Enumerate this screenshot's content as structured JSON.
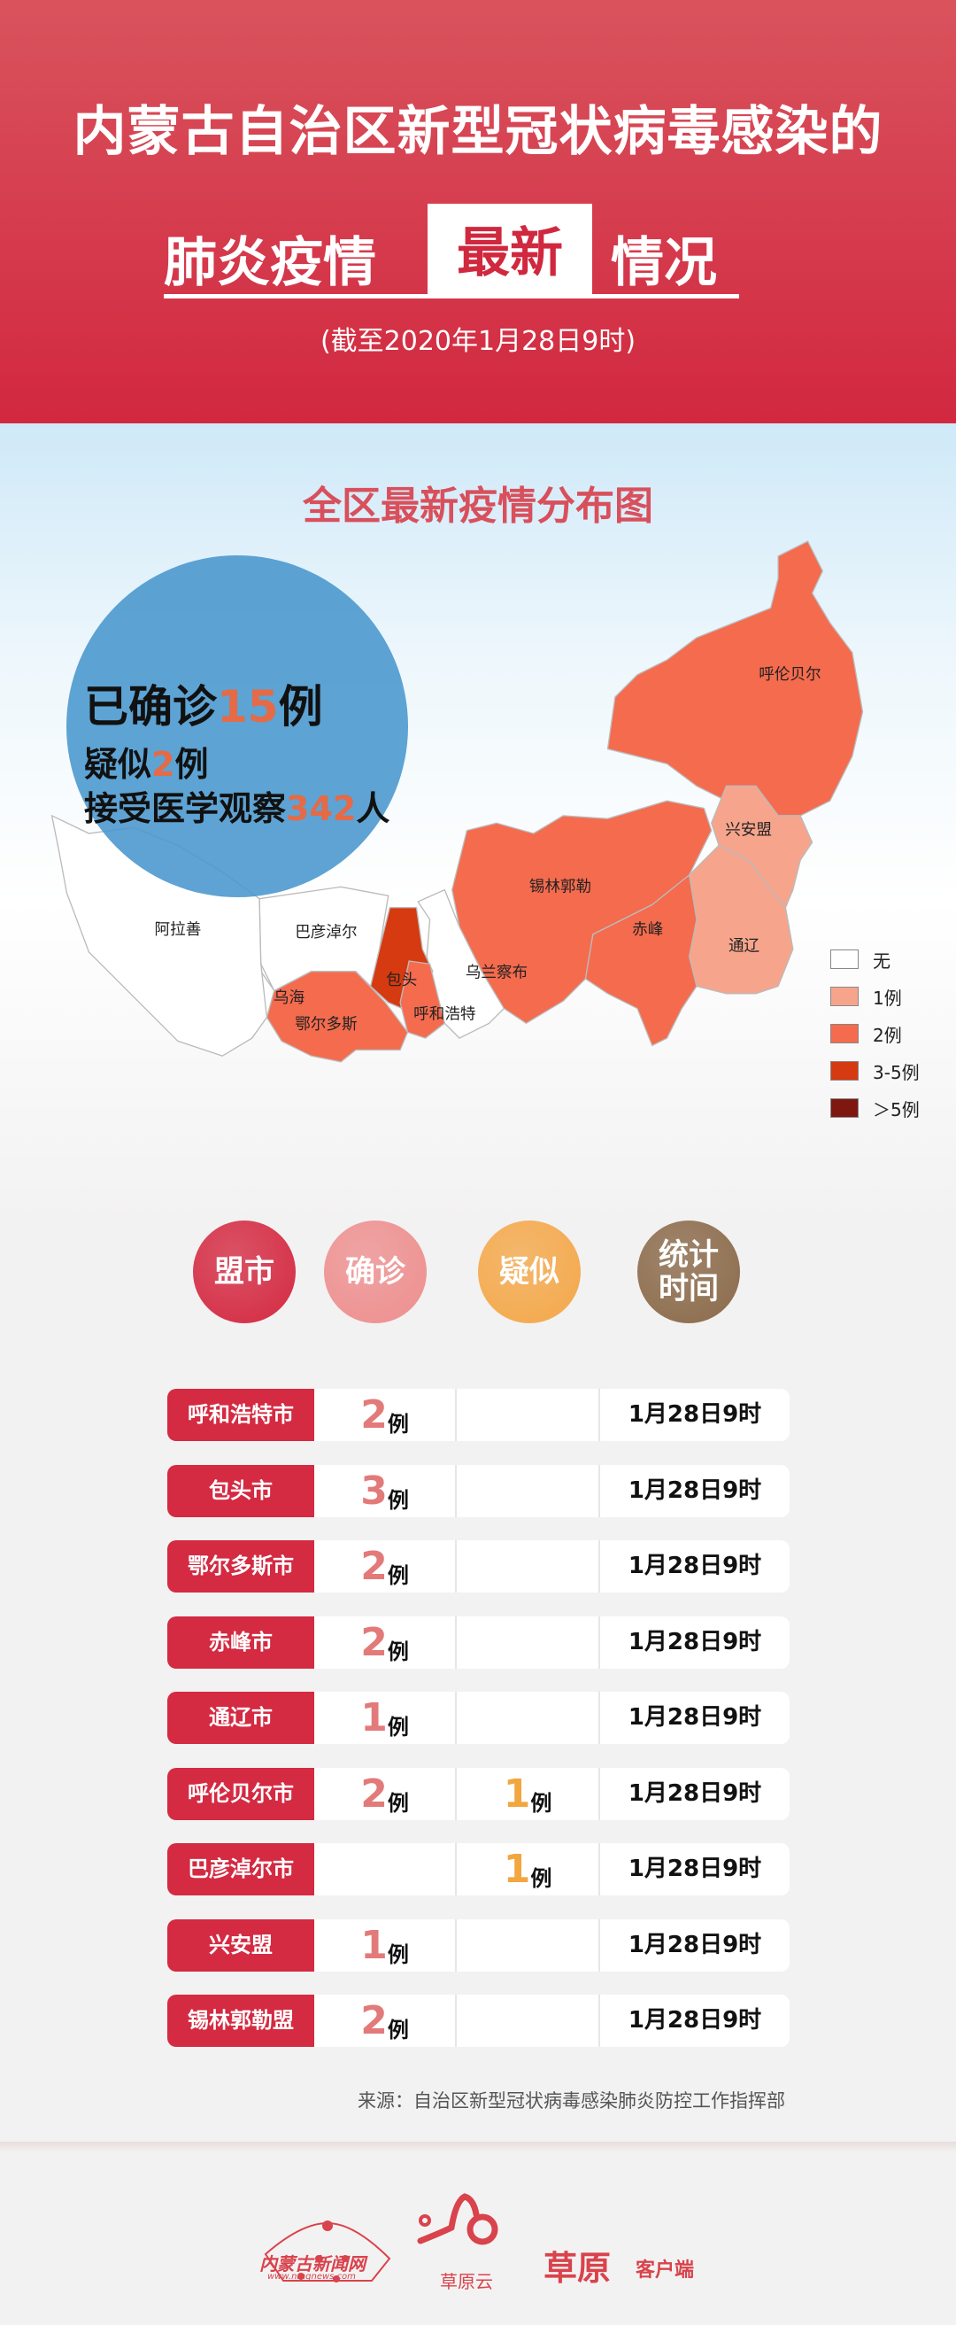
{
  "header": {
    "title_line1": "内蒙古自治区新型冠状病毒感染的",
    "title_line2_a": "肺炎疫情",
    "title_line2_highlight": "最新",
    "title_line2_b": "情况",
    "subtitle": "(截至2020年1月28日9时)"
  },
  "map": {
    "title": "全区最新疫情分布图",
    "stats": {
      "confirmed_label": "已确诊",
      "confirmed": "15",
      "confirmed_unit": "例",
      "suspected_label": "疑似",
      "suspected": "2",
      "suspected_unit": "例",
      "observed_label": "接受医学观察",
      "observed": "342",
      "observed_unit": "人"
    },
    "regions": [
      {
        "name": "呼伦贝尔",
        "level": "2例"
      },
      {
        "name": "兴安盟",
        "level": "1例"
      },
      {
        "name": "通辽",
        "level": "1例"
      },
      {
        "name": "赤峰",
        "level": "2例"
      },
      {
        "name": "锡林郭勒",
        "level": "2例"
      },
      {
        "name": "乌兰察布",
        "level": "无"
      },
      {
        "name": "包头",
        "level": "3-5例"
      },
      {
        "name": "呼和浩特",
        "level": "2例"
      },
      {
        "name": "鄂尔多斯",
        "level": "2例"
      },
      {
        "name": "巴彦淖尔",
        "level": "无"
      },
      {
        "name": "乌海",
        "level": "无"
      },
      {
        "name": "阿拉善",
        "level": "无"
      }
    ],
    "legend": [
      {
        "label": "无",
        "color": "#ffffff"
      },
      {
        "label": "1例",
        "color": "#f6a58c"
      },
      {
        "label": "2例",
        "color": "#f46b4e"
      },
      {
        "label": "3-5例",
        "color": "#d63a10"
      },
      {
        "label": "＞5例",
        "color": "#7d1710"
      }
    ]
  },
  "table": {
    "headers": [
      "盟市",
      "确诊",
      "疑似",
      "统计\n时间"
    ],
    "header_colors": [
      "#d42a42",
      "#ee8f8f",
      "#f4a84a",
      "#8b6a4a"
    ],
    "unit": "例",
    "rows": [
      {
        "region": "呼和浩特市",
        "confirmed": "2",
        "suspected": "",
        "time": "1月28日9时"
      },
      {
        "region": "包头市",
        "confirmed": "3",
        "suspected": "",
        "time": "1月28日9时"
      },
      {
        "region": "鄂尔多斯市",
        "confirmed": "2",
        "suspected": "",
        "time": "1月28日9时"
      },
      {
        "region": "赤峰市",
        "confirmed": "2",
        "suspected": "",
        "time": "1月28日9时"
      },
      {
        "region": "通辽市",
        "confirmed": "1",
        "suspected": "",
        "time": "1月28日9时"
      },
      {
        "region": "呼伦贝尔市",
        "confirmed": "2",
        "suspected": "1",
        "time": "1月28日9时"
      },
      {
        "region": "巴彦淖尔市",
        "confirmed": "",
        "suspected": "1",
        "time": "1月28日9时"
      },
      {
        "region": "兴安盟",
        "confirmed": "1",
        "suspected": "",
        "time": "1月28日9时"
      },
      {
        "region": "锡林郭勒盟",
        "confirmed": "2",
        "suspected": "",
        "time": "1月28日9时"
      }
    ],
    "source": "来源：自治区新型冠状病毒感染肺炎防控工作指挥部"
  },
  "footer": {
    "logo1": "内蒙古新闻网",
    "logo1_url_text": "www.nmgnews.com",
    "logo2": "草原云",
    "logo3": "草原",
    "logo3_sub": "客户端"
  }
}
